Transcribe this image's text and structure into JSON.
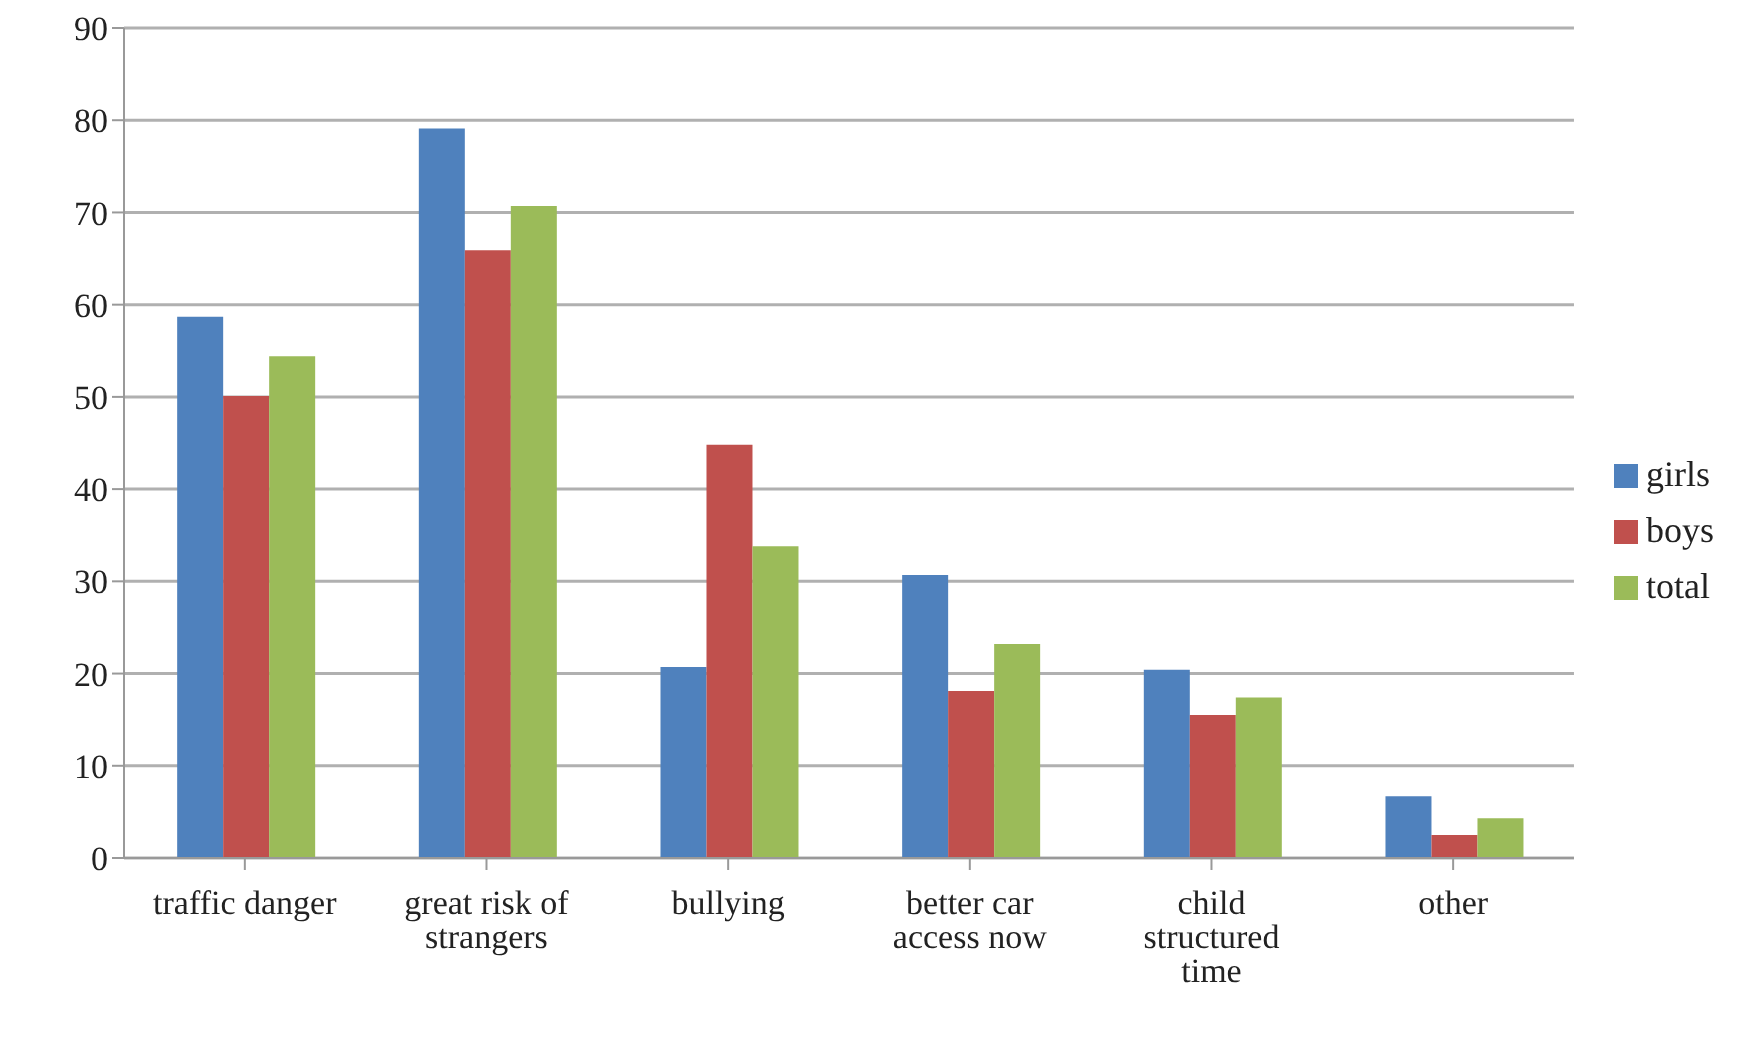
{
  "chart_data": {
    "type": "bar",
    "categories": [
      "traffic danger",
      "great risk of strangers",
      "bullying",
      "better car access now",
      "child structured time",
      "other"
    ],
    "series": [
      {
        "name": "girls",
        "color": "#4f81bd",
        "values": [
          58.7,
          79.1,
          20.7,
          30.7,
          20.4,
          6.7
        ]
      },
      {
        "name": "boys",
        "color": "#c0504d",
        "values": [
          50.1,
          65.9,
          44.8,
          18.1,
          15.5,
          2.5
        ]
      },
      {
        "name": "total",
        "color": "#9bbb59",
        "values": [
          54.4,
          70.7,
          33.8,
          23.2,
          17.4,
          4.3
        ]
      }
    ],
    "ylim": [
      0,
      90
    ],
    "yticks": [
      0,
      10,
      20,
      30,
      40,
      50,
      60,
      70,
      80,
      90
    ],
    "grid": "y",
    "legend": "right"
  }
}
